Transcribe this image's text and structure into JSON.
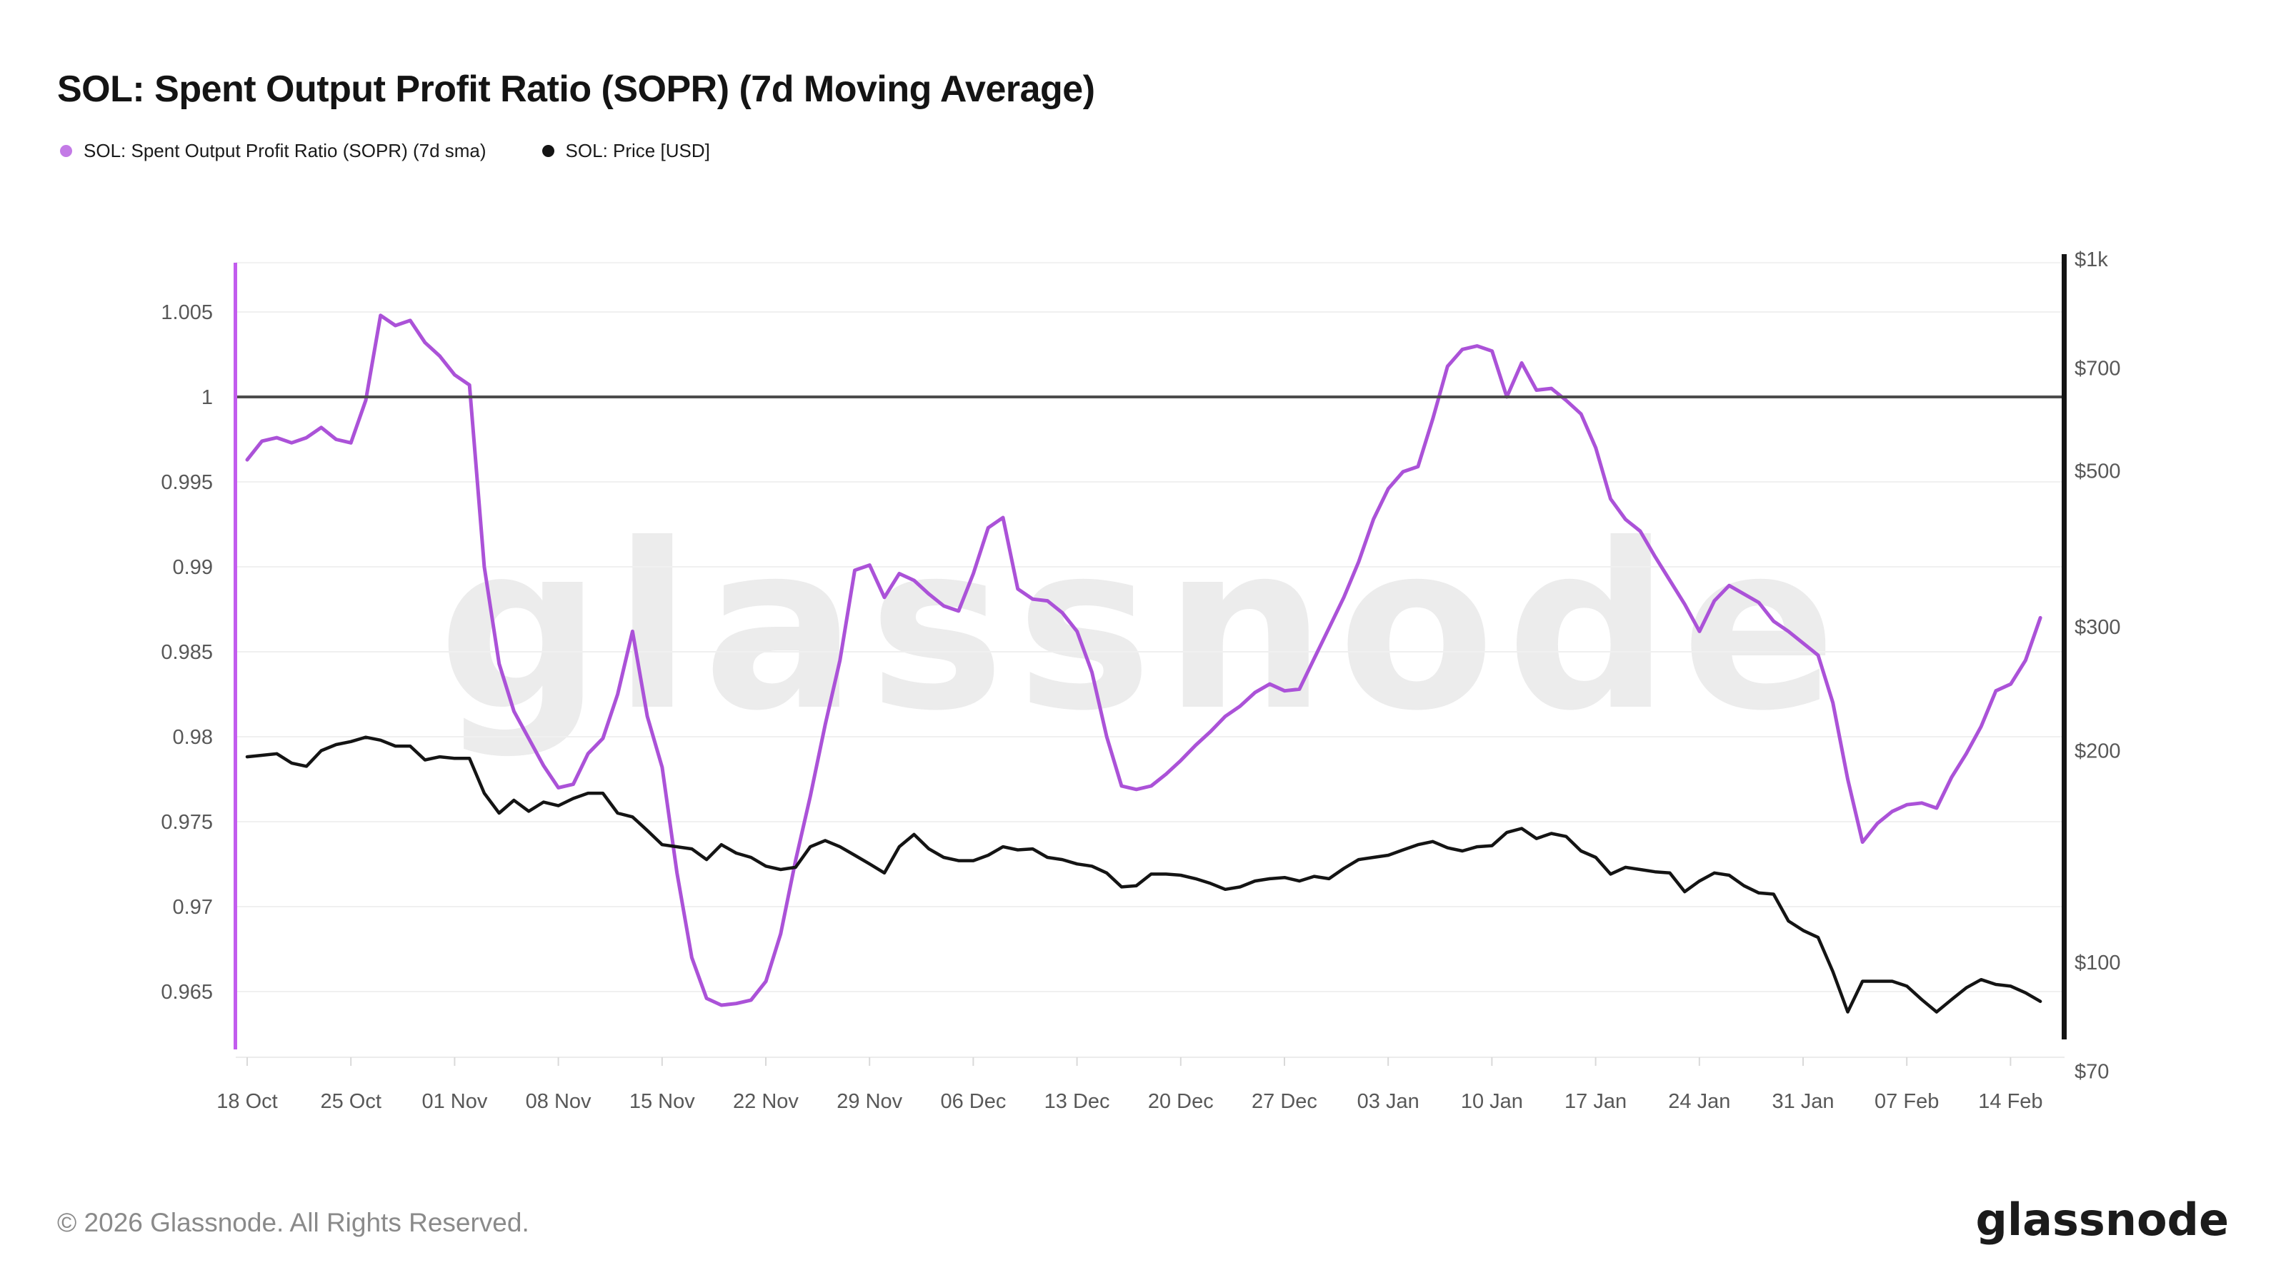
{
  "header": {
    "title": "SOL: Spent Output Profit Ratio (SOPR) (7d Moving Average)"
  },
  "legend": [
    {
      "label": "SOL: Spent Output Profit Ratio (SOPR) (7d sma)",
      "color": "#c37ae6"
    },
    {
      "label": "SOL: Price [USD]",
      "color": "#141414"
    }
  ],
  "watermark": "glassnode",
  "footer": {
    "copyright": "© 2026 Glassnode. All Rights Reserved.",
    "logo": "glassnode"
  },
  "chart_data": {
    "type": "line",
    "title": "SOL: Spent Output Profit Ratio (SOPR) (7d Moving Average)",
    "x_tick_labels": [
      "18 Oct",
      "25 Oct",
      "01 Nov",
      "08 Nov",
      "15 Nov",
      "22 Nov",
      "29 Nov",
      "06 Dec",
      "13 Dec",
      "20 Dec",
      "27 Dec",
      "03 Jan",
      "10 Jan",
      "17 Jan",
      "24 Jan",
      "31 Jan",
      "07 Feb",
      "14 Feb"
    ],
    "points_per_day": 1,
    "x_start": "18 Oct",
    "x_end": "16 Feb",
    "baseline": 1.0,
    "left_axis": {
      "scale": "linear",
      "range": [
        0.9625,
        1.0075
      ],
      "values": [
        1.005,
        1.0,
        0.995,
        0.99,
        0.985,
        0.98,
        0.975,
        0.97,
        0.965
      ],
      "labels": [
        "1.005",
        "1",
        "0.995",
        "0.99",
        "0.985",
        "0.98",
        "0.975",
        "0.97",
        "0.965"
      ]
    },
    "right_axis": {
      "scale": "log",
      "range": [
        70,
        1000
      ],
      "values": [
        1000,
        700,
        500,
        300,
        200,
        100,
        70
      ],
      "labels": [
        "$1k",
        "$700",
        "$500",
        "$300",
        "$200",
        "$100",
        "$70"
      ]
    },
    "grid": "horizontal-only",
    "legend_position": "top-left",
    "series": [
      {
        "name": "SOL: Spent Output Profit Ratio (SOPR) (7d sma)",
        "color": "#ab52d8",
        "axis": "left",
        "values": [
          0.9963,
          0.9974,
          0.9976,
          0.9973,
          0.9976,
          0.9982,
          0.9975,
          0.9973,
          0.9998,
          1.0048,
          1.0042,
          1.0045,
          1.0032,
          1.0024,
          1.0013,
          1.0007,
          0.99,
          0.9843,
          0.9815,
          0.9799,
          0.9783,
          0.977,
          0.9772,
          0.979,
          0.9799,
          0.9825,
          0.9862,
          0.9812,
          0.9782,
          0.972,
          0.967,
          0.9646,
          0.9642,
          0.9643,
          0.9645,
          0.9656,
          0.9684,
          0.9727,
          0.9765,
          0.9807,
          0.9845,
          0.9898,
          0.9901,
          0.9882,
          0.9896,
          0.9892,
          0.9884,
          0.9877,
          0.9874,
          0.9896,
          0.9923,
          0.9929,
          0.9887,
          0.9881,
          0.988,
          0.9873,
          0.9862,
          0.9838,
          0.98,
          0.9771,
          0.9769,
          0.9771,
          0.9778,
          0.9786,
          0.9795,
          0.9803,
          0.9812,
          0.9818,
          0.9826,
          0.9831,
          0.9827,
          0.9828,
          0.9846,
          0.9864,
          0.9882,
          0.9903,
          0.9928,
          0.9946,
          0.9956,
          0.9959,
          0.9987,
          1.0018,
          1.0028,
          1.003,
          1.0027,
          1.0,
          1.002,
          1.0004,
          1.0005,
          0.9998,
          0.999,
          0.997,
          0.994,
          0.9928,
          0.9921,
          0.9906,
          0.9892,
          0.9878,
          0.9862,
          0.988,
          0.9889,
          0.9884,
          0.9879,
          0.9868,
          0.9862,
          0.9855,
          0.9848,
          0.982,
          0.9775,
          0.9738,
          0.9749,
          0.9756,
          0.976,
          0.9761,
          0.9758,
          0.9776,
          0.979,
          0.9806,
          0.9827,
          0.9831,
          0.9845,
          0.987
        ]
      },
      {
        "name": "SOL: Price [USD]",
        "color": "#141414",
        "axis": "right",
        "values": [
          196,
          197,
          198,
          192,
          190,
          200,
          204,
          206,
          209,
          207,
          203,
          203,
          194,
          196,
          195,
          195,
          174,
          163,
          170,
          164,
          169,
          167,
          171,
          174,
          174,
          163,
          161,
          154,
          147,
          146,
          145,
          140,
          147,
          143,
          141,
          137,
          135.5,
          136.5,
          146,
          149,
          146,
          142,
          138,
          134,
          146,
          152,
          145,
          141,
          139.5,
          139.5,
          142,
          146,
          144.5,
          145,
          141,
          140,
          138,
          137,
          134,
          128,
          128.5,
          133.5,
          133.5,
          133,
          131.5,
          129.5,
          127,
          128,
          130.5,
          131.5,
          132,
          130.5,
          132.5,
          131.5,
          136,
          140,
          141,
          142,
          144.5,
          147,
          148.5,
          145.5,
          144,
          146,
          146.5,
          153,
          155,
          150,
          152.5,
          151,
          144,
          141,
          133.5,
          136.5,
          135.5,
          134.5,
          134,
          126,
          130.5,
          134,
          133,
          128.5,
          125.5,
          125,
          114.5,
          111,
          108.5,
          97,
          85,
          94,
          94,
          94,
          92.5,
          88.5,
          85,
          88.5,
          92,
          94.5,
          93,
          92.5,
          90.5,
          88
        ]
      }
    ]
  }
}
